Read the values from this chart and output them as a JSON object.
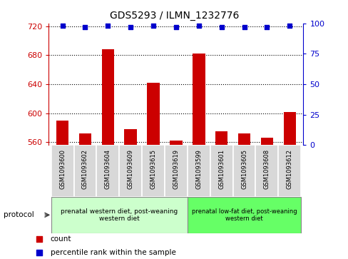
{
  "title": "GDS5293 / ILMN_1232776",
  "samples": [
    "GSM1093600",
    "GSM1093602",
    "GSM1093604",
    "GSM1093609",
    "GSM1093615",
    "GSM1093619",
    "GSM1093599",
    "GSM1093601",
    "GSM1093605",
    "GSM1093608",
    "GSM1093612"
  ],
  "count_values": [
    590,
    572,
    688,
    578,
    642,
    562,
    682,
    575,
    572,
    566,
    602
  ],
  "percentile_values": [
    98,
    97,
    98,
    97,
    98,
    97,
    98,
    97,
    97,
    97,
    98
  ],
  "ylim_left": [
    556,
    724
  ],
  "ylim_right": [
    0,
    100
  ],
  "yticks_left": [
    560,
    600,
    640,
    680,
    720
  ],
  "yticks_right": [
    0,
    25,
    50,
    75,
    100
  ],
  "bar_color": "#cc0000",
  "dot_color": "#0000cc",
  "left_axis_color": "#cc0000",
  "right_axis_color": "#0000cc",
  "group1_label": "prenatal western diet, post-weaning\nwestern diet",
  "group2_label": "prenatal low-fat diet, post-weaning\nwestern diet",
  "group1_color": "#ccffcc",
  "group2_color": "#66ff66",
  "group1_indices": [
    0,
    1,
    2,
    3,
    4,
    5
  ],
  "group2_indices": [
    6,
    7,
    8,
    9,
    10
  ],
  "protocol_label": "protocol",
  "legend_count_label": "count",
  "legend_pct_label": "percentile rank within the sample",
  "sample_bg_color": "#d8d8d8",
  "plot_bg": "#ffffff",
  "bar_width": 0.55
}
